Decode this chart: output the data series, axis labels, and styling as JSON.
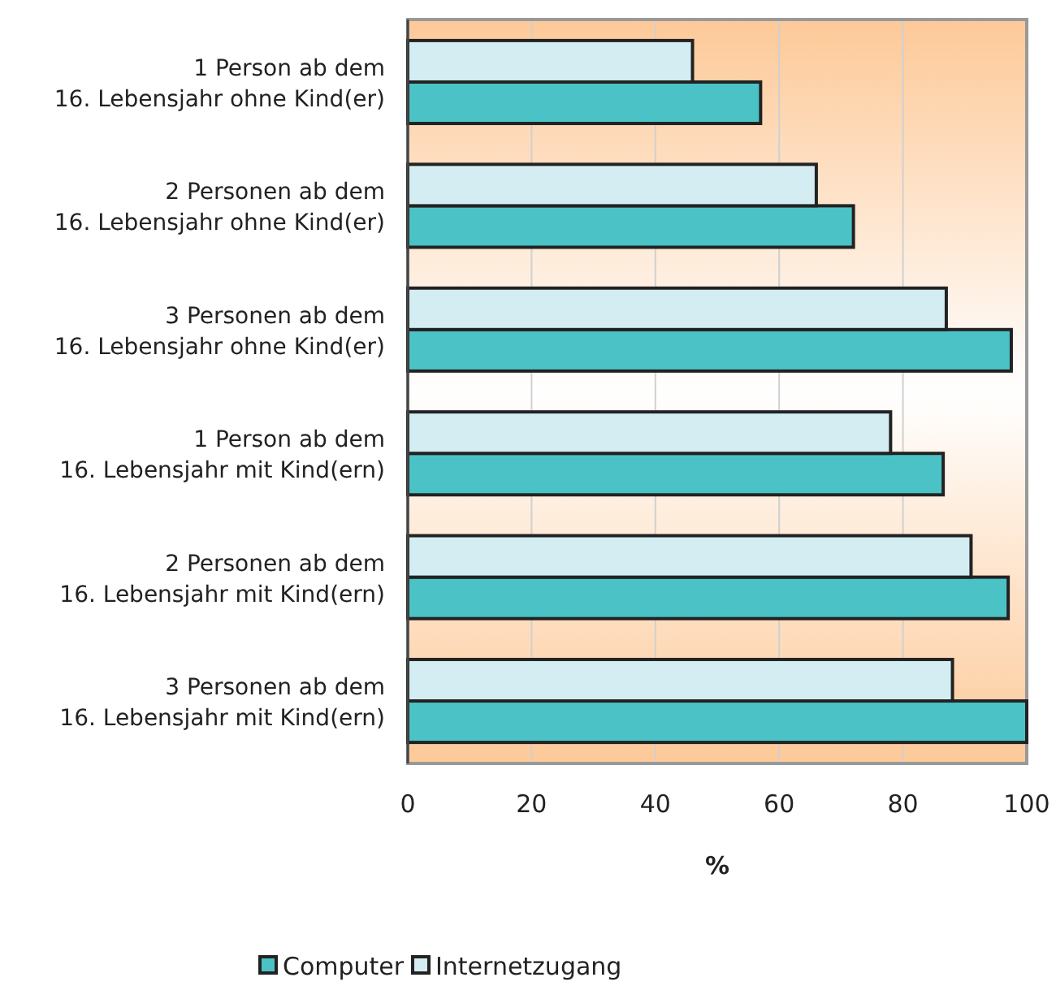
{
  "chart_data": {
    "type": "bar",
    "orientation": "horizontal",
    "xlabel": "%",
    "categories": [
      "1 Person ab dem\n16. Lebensjahr ohne Kind(er)",
      "2 Personen ab dem\n16. Lebensjahr ohne Kind(er)",
      "3 Personen ab dem\n16. Lebensjahr ohne Kind(er)",
      "1 Person ab dem\n16. Lebensjahr mit Kind(ern)",
      "2 Personen ab dem\n16. Lebensjahr mit Kind(ern)",
      "3 Personen ab dem\n16. Lebensjahr mit Kind(ern)"
    ],
    "series": [
      {
        "name": "Computer",
        "color": "#4bc3c6",
        "values": [
          57,
          72,
          97.5,
          86.5,
          97,
          100
        ]
      },
      {
        "name": "Internetzugang",
        "color": "#d4edf2",
        "values": [
          46,
          66,
          87,
          78,
          91,
          88
        ]
      }
    ],
    "xlim": [
      0,
      100
    ],
    "xticks": [
      0,
      20,
      40,
      60,
      80,
      100
    ],
    "grid": "x",
    "legend": "bottom"
  }
}
